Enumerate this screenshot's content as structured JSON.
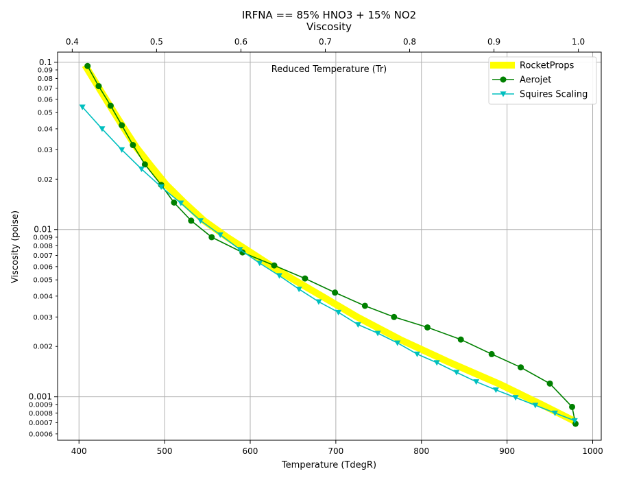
{
  "chart_data": {
    "type": "line",
    "title": "IRFNA == 85% HNO3 + 15% NO2",
    "subtitle": "Viscosity",
    "xlabel": "Temperature (TdegR)",
    "ylabel": "Viscosity (poise)",
    "top_axis_label": "Reduced Temperature (Tr)",
    "xlim": [
      375,
      1010
    ],
    "ylim": [
      0.00055,
      0.115
    ],
    "yscale": "log",
    "grid": true,
    "legend_position": "top-right",
    "x_ticks": [
      "400",
      "500",
      "600",
      "700",
      "800",
      "900",
      "1000"
    ],
    "top_ticks": [
      "0.4",
      "0.5",
      "0.6",
      "0.7",
      "0.8",
      "0.9",
      "1.0"
    ],
    "top_axis_map": {
      "tr_at_400": 0.408,
      "tr_at_1000": 1.017
    },
    "y_major_ticks": [
      "0.1",
      "0.01",
      "0.001"
    ],
    "y_minor_ticks": [
      "0.09",
      "0.08",
      "0.07",
      "0.06",
      "0.05",
      "0.04",
      "0.03",
      "0.02",
      "0.009",
      "0.008",
      "0.007",
      "0.006",
      "0.005",
      "0.004",
      "0.003",
      "0.002",
      "0.0009",
      "0.0008",
      "0.0007",
      "0.0006"
    ],
    "series": [
      {
        "name": "RocketProps",
        "color": "#ffff00",
        "style": "thick-line",
        "x": [
          407,
          425,
          440,
          453,
          467,
          484,
          502,
          523,
          546,
          573,
          604,
          640,
          680,
          725,
          775,
          830,
          890,
          940,
          980
        ],
        "y": [
          0.096,
          0.068,
          0.051,
          0.04,
          0.031,
          0.024,
          0.0185,
          0.0145,
          0.0113,
          0.009,
          0.0071,
          0.0054,
          0.0041,
          0.003,
          0.0022,
          0.00163,
          0.0012,
          0.0009,
          0.00071
        ]
      },
      {
        "name": "Aerojet",
        "color": "#008000",
        "marker": "circle",
        "x": [
          410,
          423,
          437,
          450,
          463,
          477,
          496,
          511,
          531,
          555,
          591,
          628,
          664,
          699,
          734,
          768,
          807,
          846,
          882,
          916,
          950,
          976,
          980
        ],
        "y": [
          0.095,
          0.072,
          0.055,
          0.042,
          0.032,
          0.0245,
          0.0185,
          0.0145,
          0.0113,
          0.009,
          0.0073,
          0.0061,
          0.0051,
          0.0042,
          0.0035,
          0.003,
          0.0026,
          0.0022,
          0.0018,
          0.0015,
          0.0012,
          0.00087,
          0.00069
        ]
      },
      {
        "name": "Squires Scaling",
        "color": "#00bfbf",
        "marker": "triangle-down",
        "x": [
          404,
          427,
          450,
          473,
          496,
          519,
          542,
          565,
          588,
          611,
          634,
          657,
          680,
          703,
          726,
          749,
          772,
          795,
          818,
          841,
          864,
          887,
          910,
          933,
          956,
          979
        ],
        "y": [
          0.054,
          0.04,
          0.03,
          0.023,
          0.018,
          0.0144,
          0.0113,
          0.0093,
          0.0076,
          0.0063,
          0.0053,
          0.0044,
          0.0037,
          0.0032,
          0.0027,
          0.0024,
          0.0021,
          0.0018,
          0.0016,
          0.0014,
          0.00123,
          0.0011,
          0.00099,
          0.00089,
          0.0008,
          0.00072
        ]
      }
    ]
  }
}
